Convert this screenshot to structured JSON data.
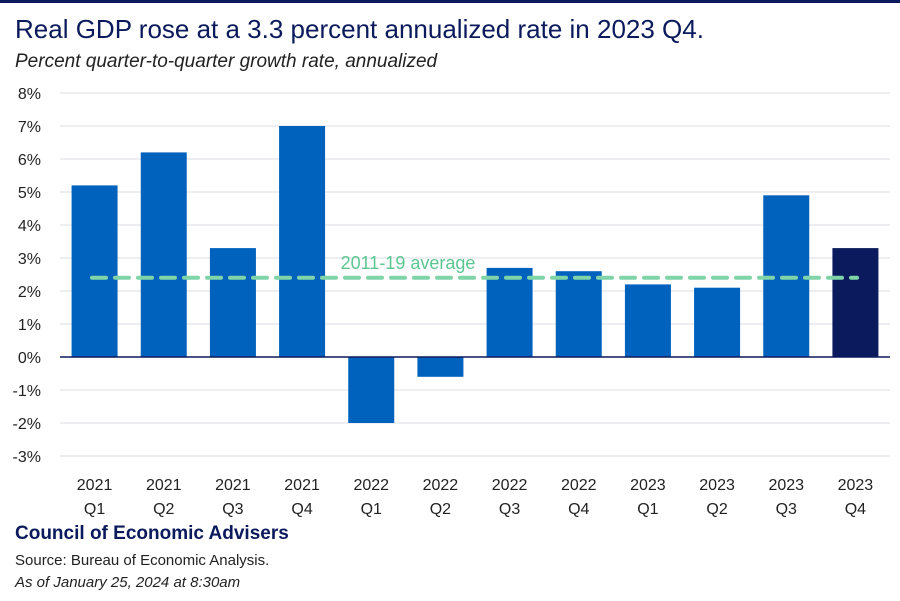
{
  "title": "Real GDP rose at a 3.3 percent annualized rate in 2023 Q4.",
  "subtitle": "Percent quarter-to-quarter growth rate, annualized",
  "footer": {
    "organization": "Council of Economic Advisers",
    "source": "Source: Bureau of Economic Analysis.",
    "as_of": "As of January 25, 2024 at 8:30am"
  },
  "colors": {
    "bar": "#0062bd",
    "bar_highlight": "#0b1a5c",
    "average_line": "#7fd4a8",
    "average_label": "#5cc691",
    "gridline": "#d9dde5",
    "zero_line": "#0b1a5c"
  },
  "chart_data": {
    "type": "bar",
    "categories": [
      [
        "2021",
        "Q1"
      ],
      [
        "2021",
        "Q2"
      ],
      [
        "2021",
        "Q3"
      ],
      [
        "2021",
        "Q4"
      ],
      [
        "2022",
        "Q1"
      ],
      [
        "2022",
        "Q2"
      ],
      [
        "2022",
        "Q3"
      ],
      [
        "2022",
        "Q4"
      ],
      [
        "2023",
        "Q1"
      ],
      [
        "2023",
        "Q2"
      ],
      [
        "2023",
        "Q3"
      ],
      [
        "2023",
        "Q4"
      ]
    ],
    "values": [
      5.2,
      6.2,
      3.3,
      7.0,
      -2.0,
      -0.6,
      2.7,
      2.6,
      2.2,
      2.1,
      4.9,
      3.3
    ],
    "highlight_index": 11,
    "ylim": [
      -3,
      8
    ],
    "yticks": [
      8,
      7,
      6,
      5,
      4,
      3,
      2,
      1,
      0,
      -1,
      -2,
      -3
    ],
    "ytick_labels": [
      "8%",
      "7%",
      "6%",
      "5%",
      "4%",
      "3%",
      "2%",
      "1%",
      "0%",
      "-1%",
      "-2%",
      "-3%"
    ],
    "reference_line": {
      "value": 2.4,
      "label": "2011-19 average",
      "style": "dashed"
    },
    "grid": true,
    "legend": "none"
  }
}
